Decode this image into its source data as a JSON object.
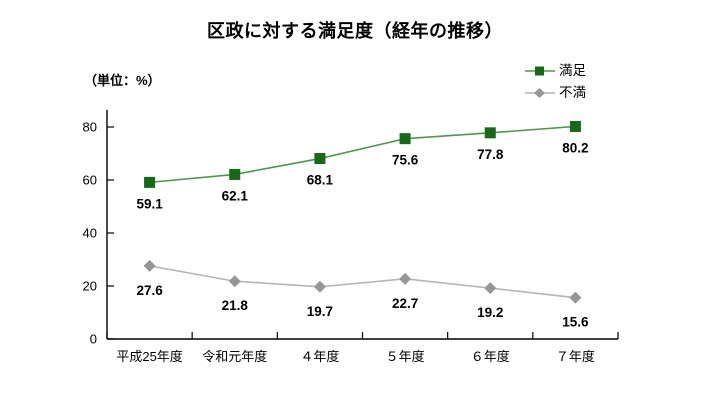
{
  "chart_data": {
    "type": "line",
    "title": "区政に対する満足度（経年の推移）",
    "unit_label": "（単位：%）",
    "categories": [
      "平成25年度",
      "令和元年度",
      "４年度",
      "５年度",
      "６年度",
      "７年度"
    ],
    "series": [
      {
        "name": "満足",
        "values": [
          59.1,
          62.1,
          68.1,
          75.6,
          77.8,
          80.2
        ],
        "marker": "square",
        "marker_color": "#156b15",
        "line_color": "#4a9a4a"
      },
      {
        "name": "不満",
        "values": [
          27.6,
          21.8,
          19.7,
          22.7,
          19.2,
          15.6
        ],
        "marker": "diamond",
        "marker_color": "#969696",
        "line_color": "#b4b4b4"
      }
    ],
    "y_ticks": [
      0,
      20,
      40,
      60,
      80
    ],
    "ylim": [
      0,
      86
    ],
    "grid": false,
    "legend_position": "top-right",
    "axis_color": "#000000",
    "label_color": "#000000"
  }
}
